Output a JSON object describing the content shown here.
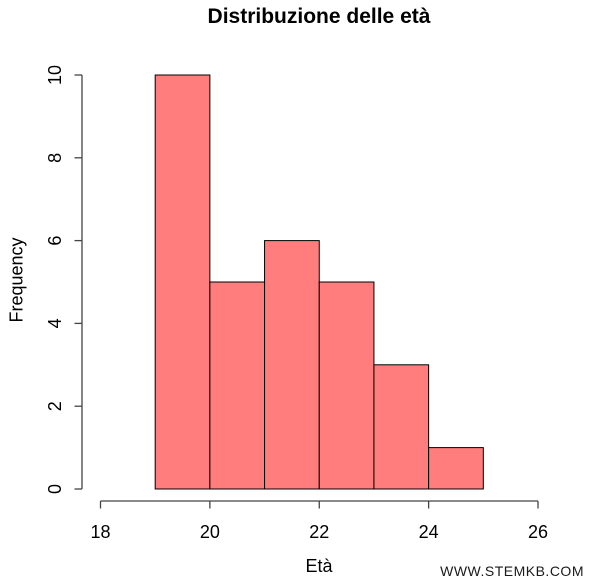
{
  "figure": {
    "watermark": "WWW.STEMKB.COM"
  },
  "chart_data": {
    "type": "bar",
    "subtype": "histogram",
    "title": "Distribuzione delle età",
    "xlabel": "Età",
    "ylabel": "Frequency",
    "bin_edges": [
      19,
      20,
      21,
      22,
      23,
      24,
      25
    ],
    "counts": [
      10,
      5,
      6,
      5,
      3,
      1
    ],
    "xlim": [
      18,
      26
    ],
    "ylim": [
      0,
      10
    ],
    "x_ticks": [
      18,
      20,
      22,
      24,
      26
    ],
    "y_ticks": [
      0,
      2,
      4,
      6,
      8,
      10
    ],
    "grid": false,
    "legend": "none",
    "bar_fill": "#FF7D7D",
    "bar_border": "#000000",
    "axis_color": "#444444",
    "text_color": "#000000"
  }
}
